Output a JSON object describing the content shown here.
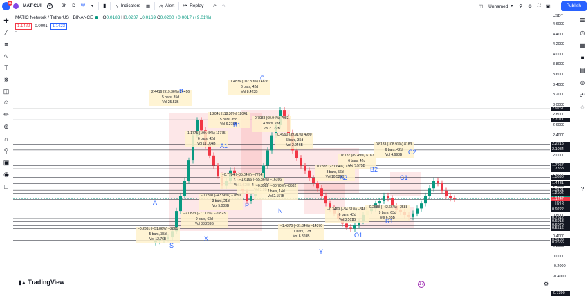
{
  "topbar": {
    "notification_count": "11",
    "symbol": "MATICU!",
    "add_label": "+",
    "interval_1": "2h",
    "interval_2": "D",
    "interval_3": "W",
    "indicators_label": "Indicators",
    "alert_label": "Alert",
    "replay_label": "Replay",
    "layout_name": "Unnamed",
    "publish_label": "Publish"
  },
  "legend": {
    "title": "MATIC Network / TetherUS · BINANCE",
    "open_label": "O",
    "open": "0.0183",
    "high_label": "H",
    "high": "0.0207",
    "low_label": "L",
    "low": "0.0169",
    "close_label": "C",
    "close": "0.0200",
    "change": "+0.0017 (+9.01%)",
    "sell_price": "1.1422",
    "spread": "0.0001",
    "buy_price": "1.1423"
  },
  "price_axis": {
    "currency": "USDT",
    "labels": [
      "4.6000",
      "4.4000",
      "4.2000",
      "4.0000",
      "3.8000",
      "3.6000",
      "3.4000",
      "3.2000",
      "3.0000",
      "2.8000",
      "2.6000",
      "2.4000",
      "2.2000",
      "2.0000",
      "1.8000",
      "1.6000",
      "1.4000",
      "1.2000",
      "1.0000",
      "0.8000",
      "0.6000",
      "0.4000",
      "0.2000",
      "0.0000",
      "-0.2000",
      "-0.4000",
      "-0.6000"
    ],
    "tags": [
      {
        "text": "2.9267",
        "color": "#131722"
      },
      {
        "text": "2.7071",
        "color": "#131722"
      },
      {
        "text": "2.2215",
        "color": "#131722"
      },
      {
        "text": "2.1084",
        "color": "#131722"
      },
      {
        "text": "1.7957",
        "color": "#131722"
      },
      {
        "text": "1.7358",
        "color": "#131722"
      },
      {
        "text": "1.5690",
        "color": "#131722"
      },
      {
        "text": "1.4431",
        "color": "#131722"
      },
      {
        "text": "1.3101",
        "color": "#131722"
      },
      {
        "text": "1.2502",
        "color": "#131722"
      },
      {
        "text": "1.1422",
        "color": "#089981"
      },
      {
        "text": "1.1247",
        "color": "#f23645"
      },
      {
        "text": "1.0573",
        "color": "#131722"
      },
      {
        "text": "1.0173",
        "color": "#131722"
      },
      {
        "text": "0.9184",
        "color": "#f23645"
      },
      {
        "text": "0.9222",
        "color": "#131722"
      },
      {
        "text": "0.7512",
        "color": "#131722"
      },
      {
        "text": "0.6913",
        "color": "#131722"
      },
      {
        "text": "0.6079",
        "color": "#131722"
      },
      {
        "text": "0.5516",
        "color": "#131722"
      },
      {
        "text": "0.3188",
        "color": "#131722"
      },
      {
        "text": "0.2656",
        "color": "#131722"
      },
      {
        "text": "-0.7390",
        "color": "#131722"
      }
    ]
  },
  "annotations": [
    {
      "lines": [
        "2.4416 (919.36%) 24416",
        "5 bars, 35d",
        "Vol 25.53B"
      ]
    },
    {
      "lines": [
        "1.4836 (102.80%) 14836",
        "6 bars, 42d",
        "Vol 8.423B"
      ]
    },
    {
      "lines": [
        "1.2041 (118.36%) 12041",
        "5 bars, 35d",
        "Vol 6.278B"
      ]
    },
    {
      "lines": [
        "1.1775 (190.49%) 11775",
        "6 bars, 42d",
        "Vol 11.004B"
      ]
    },
    {
      "lines": [
        "0.7983 (60.94%) 7983",
        "4 bars, 28d",
        "Vol 2.122B"
      ]
    },
    {
      "lines": [
        "0.4990 (39.91%) 4990",
        "5 bars, 35d",
        "Vol 2.946B"
      ]
    },
    {
      "lines": [
        "0.8183 (108.93%) 8183",
        "6 bars, 42d",
        "Vol 4.698B"
      ]
    },
    {
      "lines": [
        "0.6187 (89.49%) 6187",
        "6 bars, 42d",
        "Vol 3.575B"
      ]
    },
    {
      "lines": [
        "0.7385 (231.64%) 7385",
        "8 bars, 56d",
        "Vol 10.526B"
      ]
    },
    {
      "lines": [
        "−0.7784 (−35.04%) −7784",
        "3 bars, 21d",
        "Vol 3.625B"
      ]
    },
    {
      "lines": [
        "−1.6166 (−55.36%) −16166",
        "4 bars, 28d",
        "Vol 3.9B"
      ]
    },
    {
      "lines": [
        "−0.8582 (−60.70%) −8582",
        "2 bars, 14d",
        "Vol 2.157B"
      ]
    },
    {
      "lines": [
        "−0.7850 (−43.56%) −7850",
        "3 bars, 21d",
        "Vol 5.003B"
      ]
    },
    {
      "lines": [
        "−2.0823 (−77.11%) −20823",
        "9 bars, 63d",
        "Vol 33.239B"
      ]
    },
    {
      "lines": [
        "−0.2861 (−51.86%) −2861",
        "5 bars, 35d",
        "Vol 12.76B"
      ]
    },
    {
      "lines": [
        "−1.4370 (−81.84%) −14370",
        "11 bars, 77d",
        "Vol 6.869B"
      ]
    },
    {
      "lines": [
        "−0.3469 (−34.61%) −3469",
        "6 bars, 42d",
        "Vol 3.561B"
      ]
    },
    {
      "lines": [
        "−0.2588 (−42.66%) −2588",
        "9 bars, 63d",
        "Vol 6.85B"
      ]
    }
  ],
  "wave_labels": [
    "A",
    "S",
    "X",
    "B",
    "C",
    "P",
    "B1",
    "A1",
    "N",
    "Y",
    "A2",
    "O1",
    "B2",
    "C2",
    "C1",
    "R1"
  ],
  "footer": {
    "brand": "TradingView",
    "tv_mark": "17"
  }
}
